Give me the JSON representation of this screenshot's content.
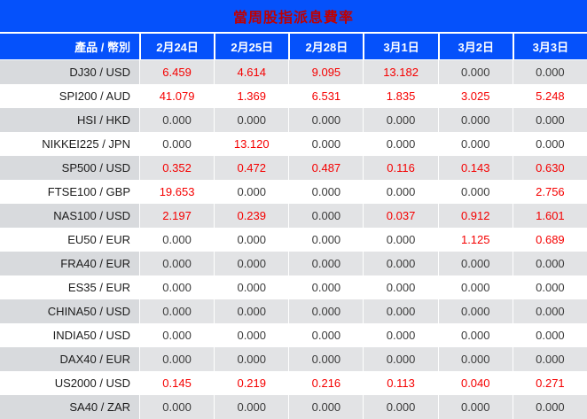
{
  "title": "當周股指派息費率",
  "colors": {
    "header_blue": "#0551fb",
    "title_red": "#c00000",
    "nonzero_value_red": "#f50000",
    "stripe_row_gray": "#e2e3e5",
    "stripe_label_gray": "#d8dadd",
    "zero_value_text": "#3c3c3c"
  },
  "chart_data": {
    "type": "table",
    "title": "當周股指派息費率",
    "columns": [
      "產品 / 幣別",
      "2月24日",
      "2月25日",
      "2月28日",
      "3月1日",
      "3月2日",
      "3月3日"
    ],
    "rows": [
      [
        "DJ30 / USD",
        "6.459",
        "4.614",
        "9.095",
        "13.182",
        "0.000",
        "0.000"
      ],
      [
        "SPI200 / AUD",
        "41.079",
        "1.369",
        "6.531",
        "1.835",
        "3.025",
        "5.248"
      ],
      [
        "HSI / HKD",
        "0.000",
        "0.000",
        "0.000",
        "0.000",
        "0.000",
        "0.000"
      ],
      [
        "NIKKEI225 / JPN",
        "0.000",
        "13.120",
        "0.000",
        "0.000",
        "0.000",
        "0.000"
      ],
      [
        "SP500 / USD",
        "0.352",
        "0.472",
        "0.487",
        "0.116",
        "0.143",
        "0.630"
      ],
      [
        "FTSE100 / GBP",
        "19.653",
        "0.000",
        "0.000",
        "0.000",
        "0.000",
        "2.756"
      ],
      [
        "NAS100 / USD",
        "2.197",
        "0.239",
        "0.000",
        "0.037",
        "0.912",
        "1.601"
      ],
      [
        "EU50 / EUR",
        "0.000",
        "0.000",
        "0.000",
        "0.000",
        "1.125",
        "0.689"
      ],
      [
        "FRA40 / EUR",
        "0.000",
        "0.000",
        "0.000",
        "0.000",
        "0.000",
        "0.000"
      ],
      [
        "ES35 / EUR",
        "0.000",
        "0.000",
        "0.000",
        "0.000",
        "0.000",
        "0.000"
      ],
      [
        "CHINA50 / USD",
        "0.000",
        "0.000",
        "0.000",
        "0.000",
        "0.000",
        "0.000"
      ],
      [
        "INDIA50 / USD",
        "0.000",
        "0.000",
        "0.000",
        "0.000",
        "0.000",
        "0.000"
      ],
      [
        "DAX40 / EUR",
        "0.000",
        "0.000",
        "0.000",
        "0.000",
        "0.000",
        "0.000"
      ],
      [
        "US2000 / USD",
        "0.145",
        "0.219",
        "0.216",
        "0.113",
        "0.040",
        "0.271"
      ],
      [
        "SA40 / ZAR",
        "0.000",
        "0.000",
        "0.000",
        "0.000",
        "0.000",
        "0.000"
      ]
    ]
  }
}
